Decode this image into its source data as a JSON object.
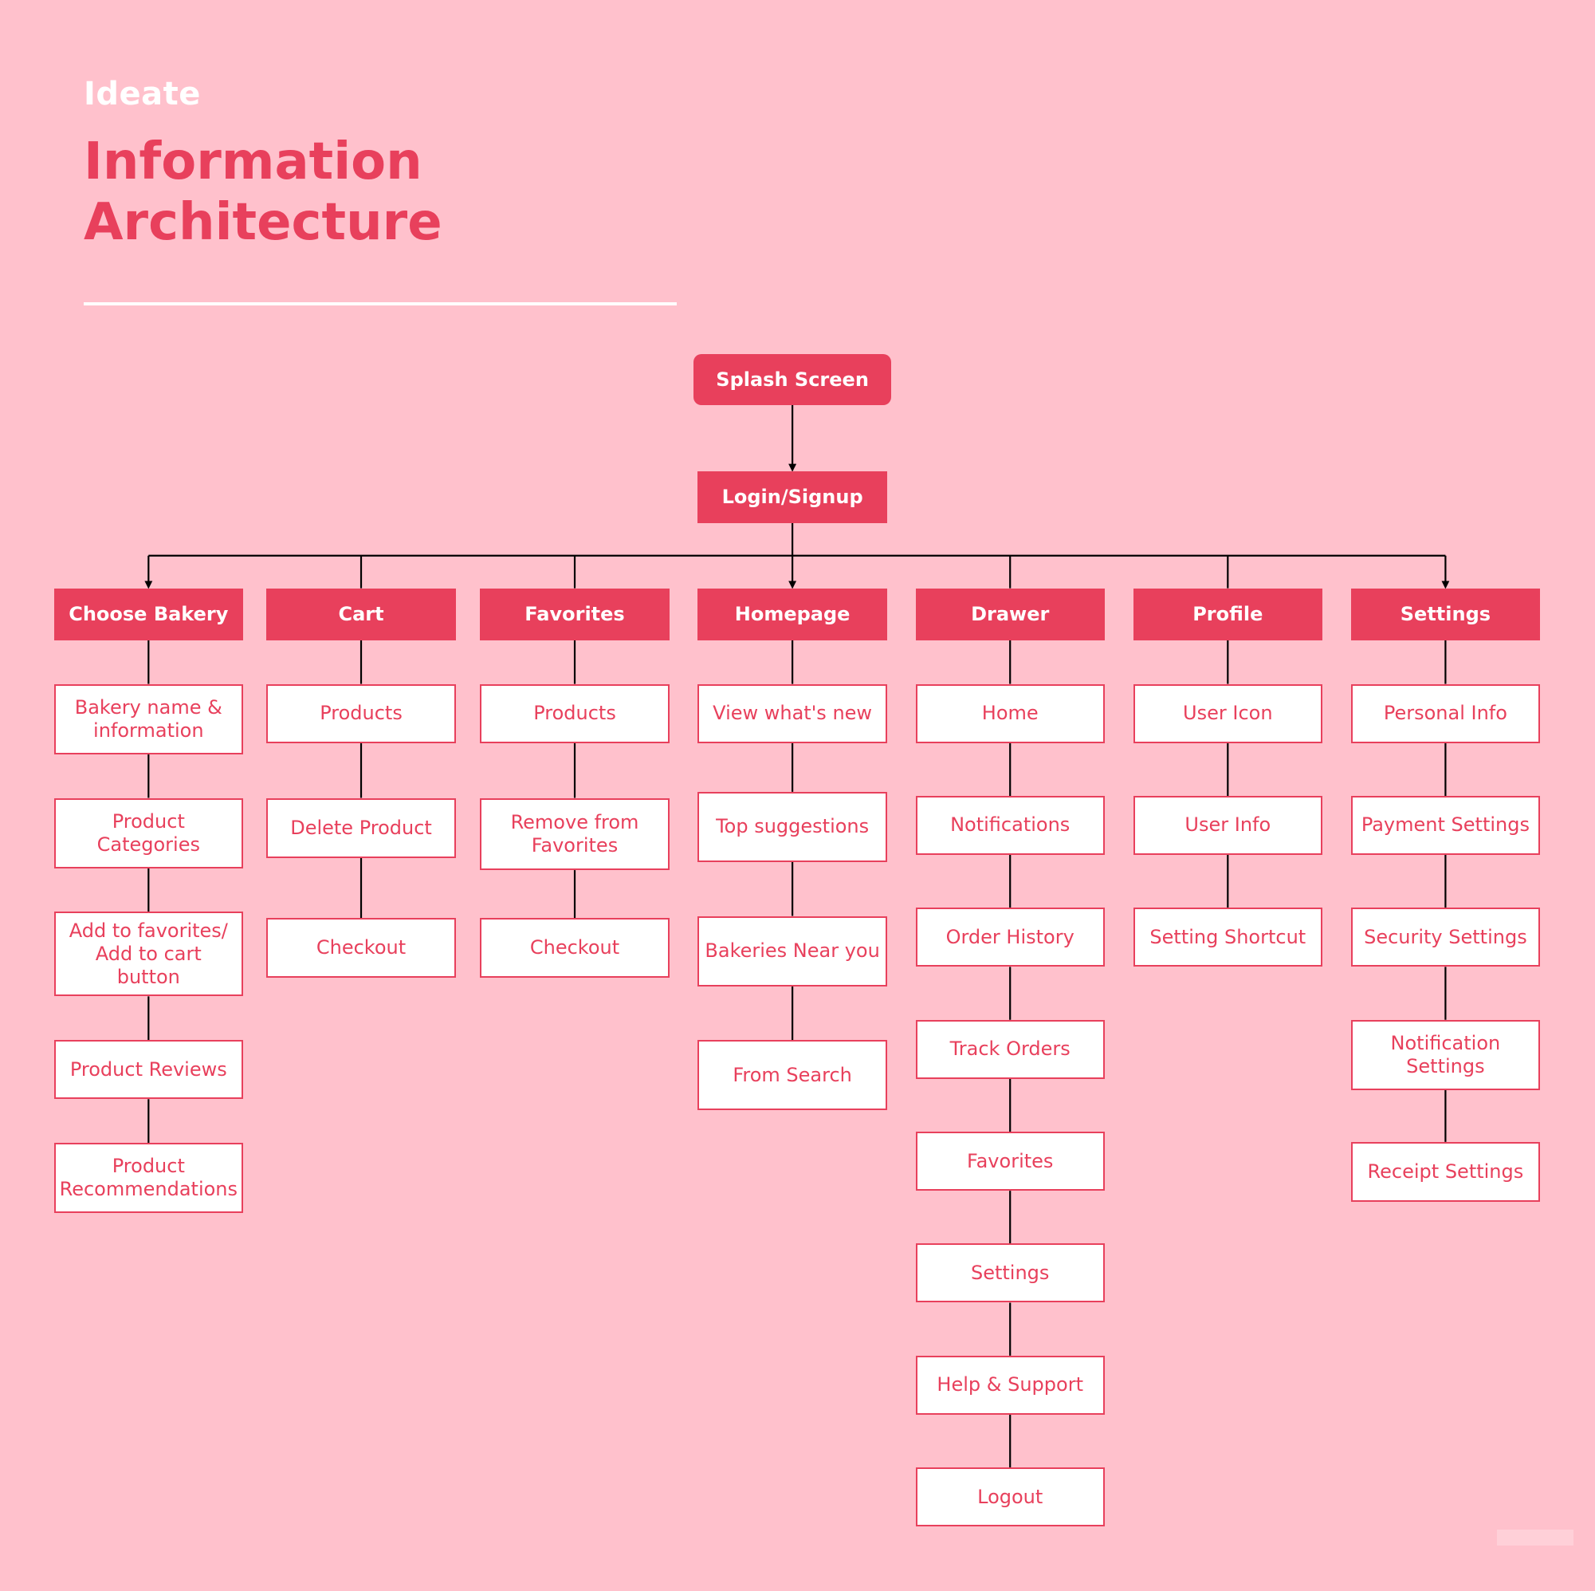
{
  "header": {
    "eyebrow": "Ideate",
    "title_line1": "Information",
    "title_line2": "Architecture"
  },
  "colors": {
    "background": "#ffc1cc",
    "accent": "#e8405c",
    "box_fill": "#ffffff",
    "connector": "#000000"
  },
  "diagram": {
    "root": "Splash Screen",
    "login": "Login/Signup",
    "sections": [
      {
        "label": "Choose Bakery",
        "items": [
          "Bakery name &\ninformation",
          "Product\nCategories",
          "Add to favorites/\nAdd to cart\nbutton",
          "Product Reviews",
          "Product\nRecommendations"
        ]
      },
      {
        "label": "Cart",
        "items": [
          "Products",
          "Delete Product",
          "Checkout"
        ]
      },
      {
        "label": "Favorites",
        "items": [
          "Products",
          "Remove from\nFavorites",
          "Checkout"
        ]
      },
      {
        "label": "Homepage",
        "items": [
          "View what's new",
          "Top suggestions",
          "Bakeries Near you",
          "From Search"
        ]
      },
      {
        "label": "Drawer",
        "items": [
          "Home",
          "Notifications",
          "Order History",
          "Track Orders",
          "Favorites",
          "Settings",
          "Help & Support",
          "Logout"
        ]
      },
      {
        "label": "Profile",
        "items": [
          "User Icon",
          "User Info",
          "Setting Shortcut"
        ]
      },
      {
        "label": "Settings",
        "items": [
          "Personal Info",
          "Payment Settings",
          "Security Settings",
          "Notification\nSettings",
          "Receipt Settings"
        ]
      }
    ]
  }
}
